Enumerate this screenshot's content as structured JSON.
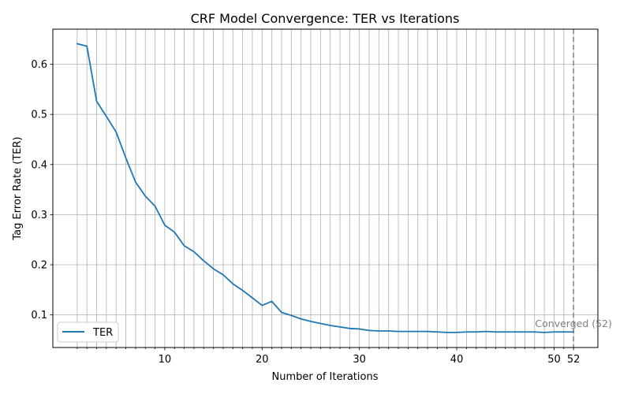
{
  "chart_data": {
    "type": "line",
    "title": "CRF Model Convergence: TER vs Iterations",
    "xlabel": "Number of Iterations",
    "ylabel": "Tag Error Rate (TER)",
    "xlim": [
      -1.5,
      54.5
    ],
    "ylim": [
      0.035,
      0.67
    ],
    "x_tick_labels": [
      10,
      20,
      30,
      40,
      50,
      52
    ],
    "minor_x_ticks_every": 1,
    "y_ticks": [
      0.1,
      0.2,
      0.3,
      0.4,
      0.5,
      0.6
    ],
    "grid": true,
    "legend": "lower-left",
    "series": [
      {
        "name": "TER",
        "color": "#1f77b4",
        "x": [
          1,
          2,
          3,
          4,
          5,
          6,
          7,
          8,
          9,
          10,
          11,
          12,
          13,
          14,
          15,
          16,
          17,
          18,
          19,
          20,
          21,
          22,
          23,
          24,
          25,
          26,
          27,
          28,
          29,
          30,
          31,
          32,
          33,
          34,
          35,
          36,
          37,
          38,
          39,
          40,
          41,
          42,
          43,
          44,
          45,
          46,
          47,
          48,
          49,
          50,
          51,
          52
        ],
        "values": [
          0.641,
          0.636,
          0.526,
          0.496,
          0.465,
          0.413,
          0.365,
          0.337,
          0.317,
          0.279,
          0.265,
          0.238,
          0.226,
          0.208,
          0.192,
          0.18,
          0.162,
          0.149,
          0.134,
          0.119,
          0.127,
          0.105,
          0.099,
          0.092,
          0.087,
          0.083,
          0.079,
          0.076,
          0.073,
          0.072,
          0.069,
          0.068,
          0.068,
          0.067,
          0.067,
          0.067,
          0.067,
          0.066,
          0.065,
          0.065,
          0.066,
          0.066,
          0.067,
          0.066,
          0.066,
          0.066,
          0.066,
          0.066,
          0.065,
          0.066,
          0.066,
          0.066
        ]
      }
    ],
    "annotation": {
      "x": 52,
      "text": "Converged (52)",
      "color": "#808080"
    }
  }
}
